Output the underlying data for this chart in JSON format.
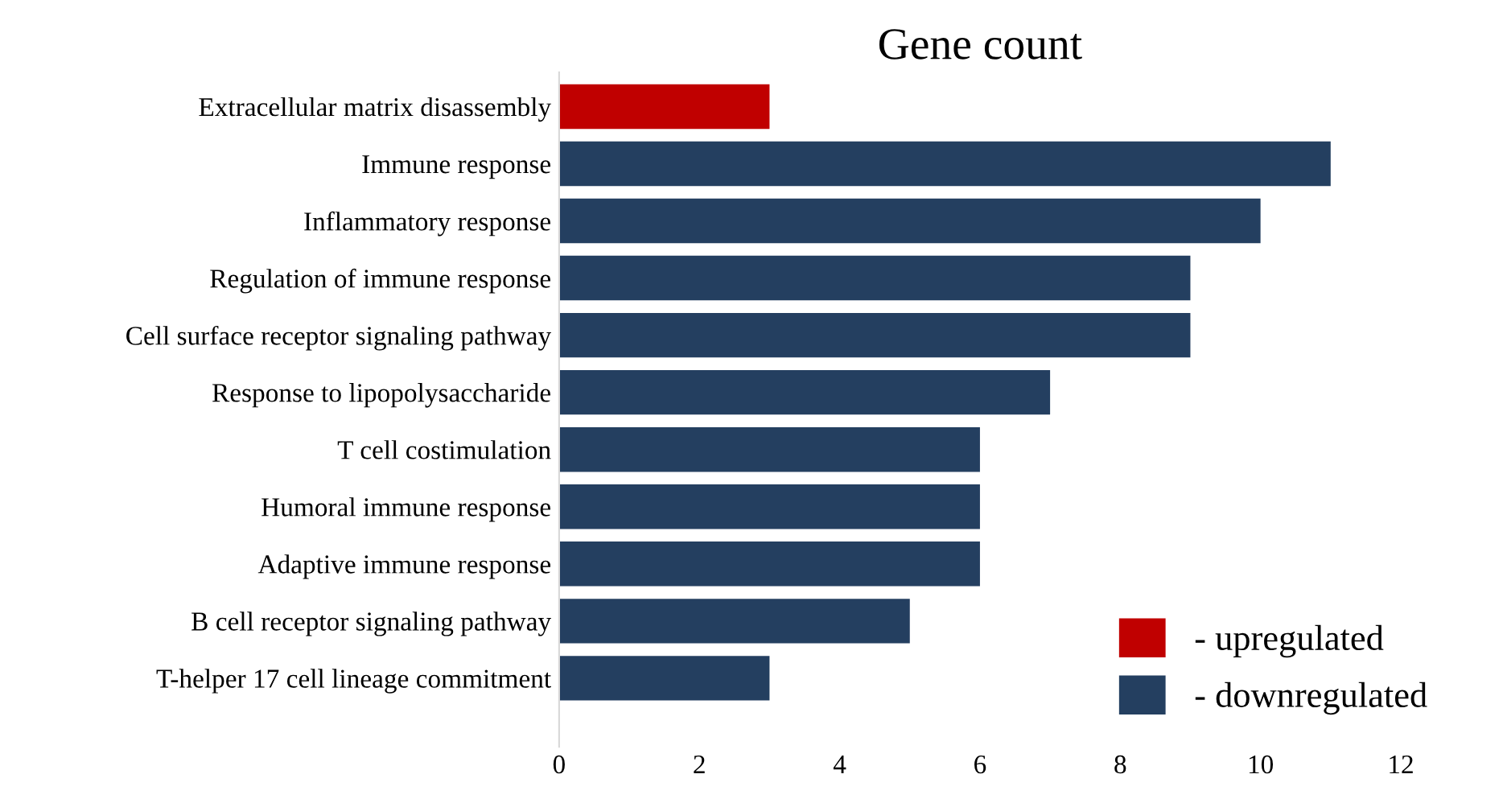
{
  "chart_data": {
    "type": "bar",
    "orientation": "horizontal",
    "title": "Gene count",
    "categories": [
      "Extracellular matrix disassembly",
      "Immune response",
      "Inflammatory response",
      "Regulation of immune response",
      "Cell surface receptor signaling pathway",
      "Response to lipopolysaccharide",
      "T cell costimulation",
      "Humoral immune response",
      "Adaptive immune response",
      "B cell receptor signaling pathway",
      "T-helper 17 cell lineage commitment"
    ],
    "series": [
      {
        "name": "- upregulated",
        "color": "#c00000",
        "values": [
          3,
          null,
          null,
          null,
          null,
          null,
          null,
          null,
          null,
          null,
          null
        ]
      },
      {
        "name": "- downregulated",
        "color": "#243f60",
        "values": [
          null,
          11,
          10,
          9,
          9,
          7,
          6,
          6,
          6,
          5,
          3
        ]
      }
    ],
    "xlim": [
      0,
      12
    ],
    "xticks": [
      0,
      2,
      4,
      6,
      8,
      10,
      12
    ],
    "grid": false,
    "legend": "bottom right"
  }
}
